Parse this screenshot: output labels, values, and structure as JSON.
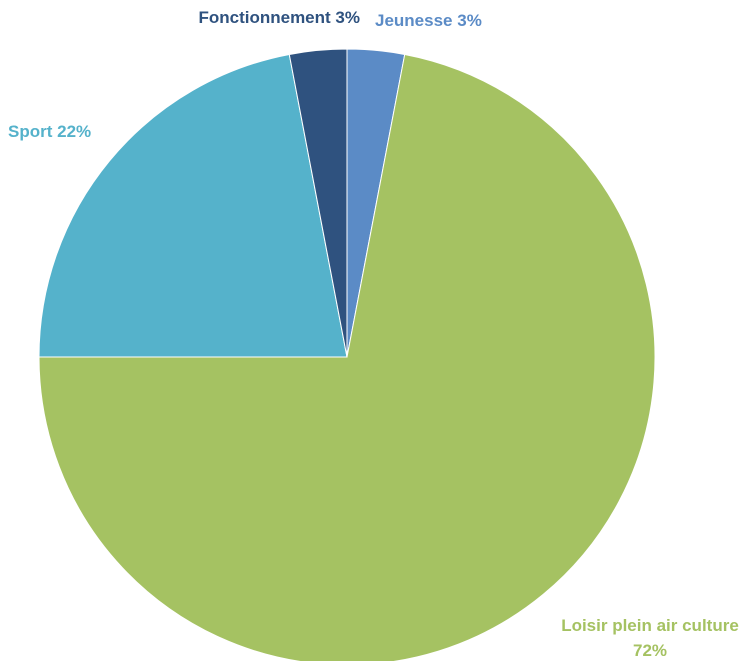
{
  "chart_data": {
    "type": "pie",
    "categories": [
      "Jeunesse",
      "Loisir plein air culture",
      "Sport",
      "Fonctionnement"
    ],
    "values": [
      3,
      72,
      22,
      3
    ],
    "value_labels": [
      "3%",
      "72%",
      "22%",
      "3%"
    ],
    "colors": [
      "#5b8bc6",
      "#a5c262",
      "#55b2cb",
      "#2f527f"
    ]
  }
}
